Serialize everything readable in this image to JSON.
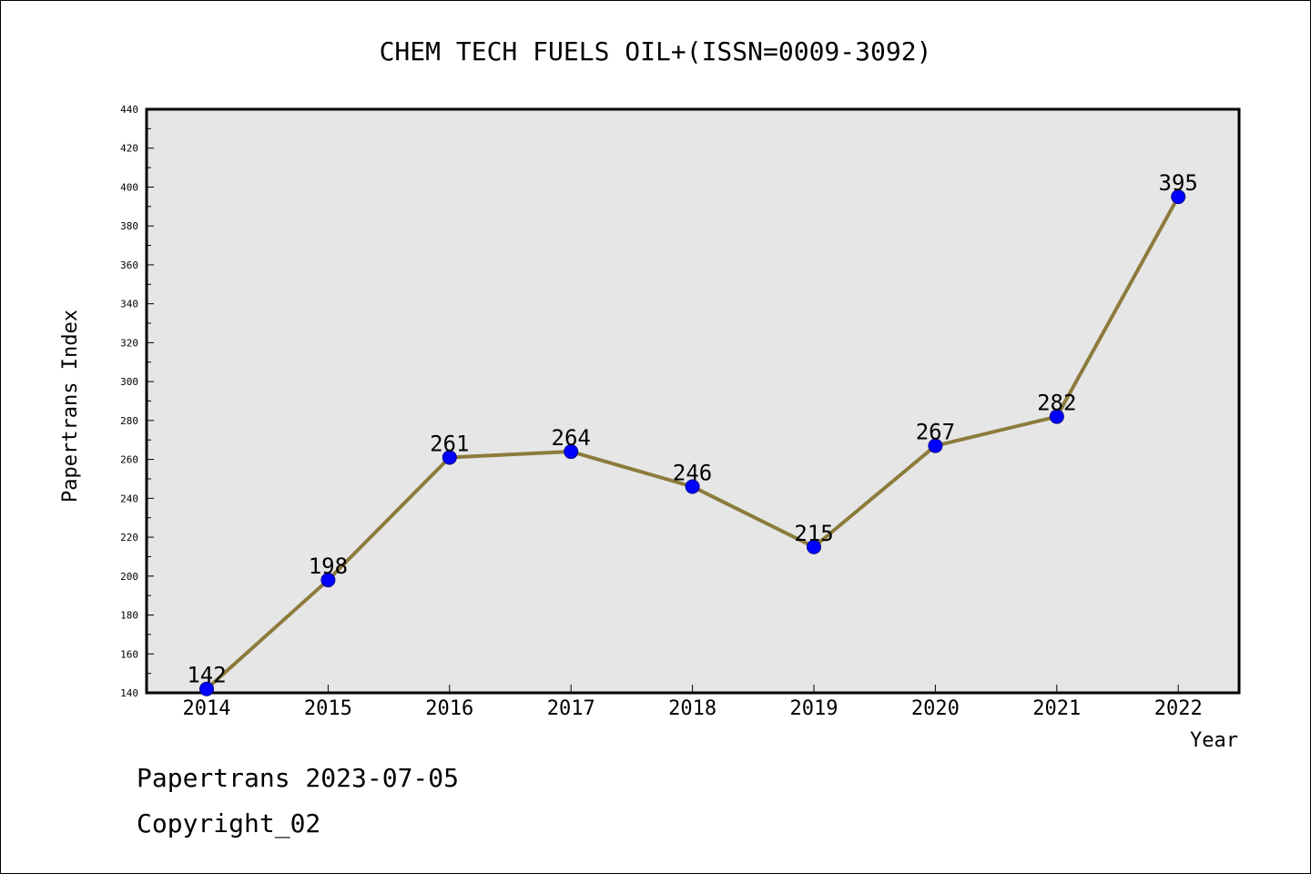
{
  "chart_data": {
    "type": "line",
    "title": "CHEM TECH FUELS OIL+(ISSN=0009-3092)",
    "xlabel": "Year",
    "ylabel": "Papertrans Index",
    "categories": [
      "2014",
      "2015",
      "2016",
      "2017",
      "2018",
      "2019",
      "2020",
      "2021",
      "2022"
    ],
    "series": [
      {
        "values": [
          142,
          198,
          261,
          264,
          246,
          215,
          267,
          282,
          395
        ]
      }
    ],
    "ylim": [
      140,
      440
    ],
    "yticks": [
      "140",
      "160",
      "180",
      "200",
      "220",
      "240",
      "260",
      "280",
      "300",
      "320",
      "340",
      "360",
      "380",
      "400",
      "420",
      "440"
    ],
    "data_labels": [
      "142",
      "198",
      "261",
      "264",
      "246",
      "215",
      "267",
      "282",
      "395"
    ],
    "grid": false,
    "colors": {
      "line": "#8c7b3c",
      "marker": "#0000ff",
      "plot_background": "#e6e6e6"
    }
  },
  "footer": {
    "line1": "Papertrans 2023-07-05",
    "line2": "Copyright_02"
  }
}
